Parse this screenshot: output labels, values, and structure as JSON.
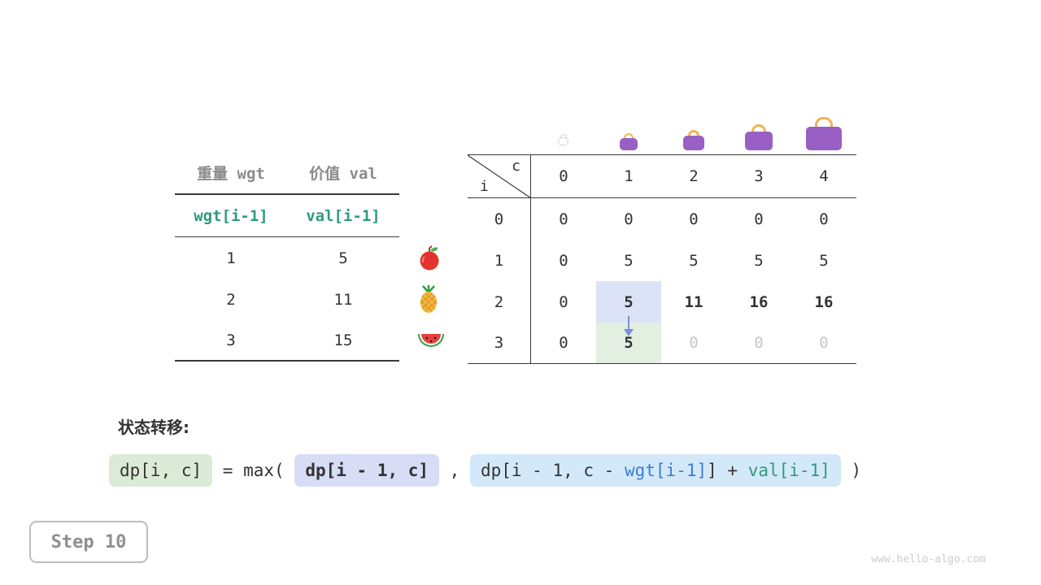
{
  "items_table": {
    "headers": [
      "重量 wgt",
      "价值 val"
    ],
    "var_row": [
      "wgt[i-1]",
      "val[i-1]"
    ],
    "rows": [
      {
        "weight": "1",
        "value": "5",
        "icon": "apple-icon"
      },
      {
        "weight": "2",
        "value": "11",
        "icon": "pineapple-icon"
      },
      {
        "weight": "3",
        "value": "15",
        "icon": "watermelon-icon"
      }
    ]
  },
  "dp_table": {
    "corner": {
      "row_label": "i",
      "col_label": "c"
    },
    "col_headers": [
      "0",
      "1",
      "2",
      "3",
      "4"
    ],
    "row_headers": [
      "0",
      "1",
      "2",
      "3"
    ],
    "rows": [
      [
        "0",
        "0",
        "0",
        "0",
        "0"
      ],
      [
        "0",
        "5",
        "5",
        "5",
        "5"
      ],
      [
        "0",
        "5",
        "11",
        "16",
        "16"
      ],
      [
        "0",
        "5",
        "0",
        "0",
        "0"
      ]
    ],
    "highlights": {
      "blue_cell": {
        "row": 2,
        "col": 1
      },
      "green_cell": {
        "row": 3,
        "col": 1
      },
      "dim_cells": [
        [
          3,
          2
        ],
        [
          3,
          3
        ],
        [
          3,
          4
        ]
      ],
      "bold_cells": [
        [
          2,
          1
        ],
        [
          2,
          2
        ],
        [
          2,
          3
        ],
        [
          2,
          4
        ],
        [
          3,
          1
        ]
      ]
    },
    "bags": [
      "bag-icon-empty",
      "bag-icon-size-1",
      "bag-icon-size-2",
      "bag-icon-size-3",
      "bag-icon-size-4"
    ]
  },
  "formula": {
    "label": "状态转移:",
    "chip_current": "dp[i, c]",
    "op1": " = max( ",
    "chip_exclude": "dp[i - 1, c]",
    "comma": " , ",
    "chip_include_segments": [
      {
        "text": "dp[i - 1, c - ",
        "color": "default"
      },
      {
        "text": "wgt[i-1]",
        "color": "blue"
      },
      {
        "text": "] + ",
        "color": "default"
      },
      {
        "text": "val[i-1]",
        "color": "green"
      }
    ],
    "close": " )"
  },
  "footer": {
    "step_label": "Step 10",
    "watermark": "www.hello-algo.com"
  },
  "colors": {
    "accent_green": "#2e9b7b",
    "accent_blue": "#3b7dd8",
    "hl_blue_bg": "#dde3f7",
    "hl_green_bg": "#e3efe0",
    "chip_green_bg": "#dcead8",
    "chip_purple_bg": "#d8ddf6",
    "chip_blue_bg": "#d3e8f8",
    "dim_text": "#c6c6c6",
    "bag_purple": "#9a5fc4",
    "bag_handle": "#f3b254"
  }
}
